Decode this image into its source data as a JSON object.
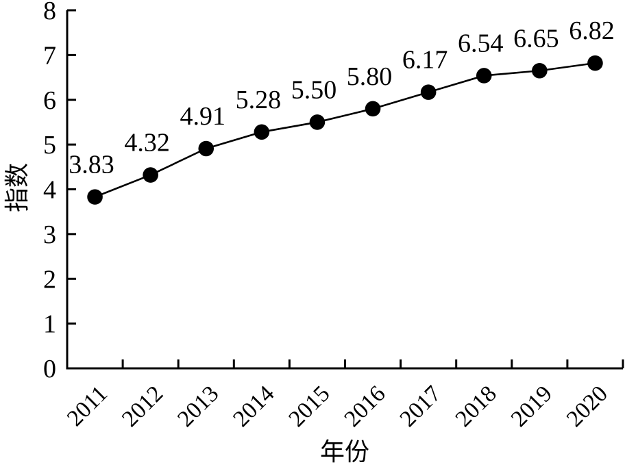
{
  "chart_data": {
    "type": "line",
    "title": "",
    "xlabel": "年份",
    "ylabel": "指数",
    "categories": [
      "2011",
      "2012",
      "2013",
      "2014",
      "2015",
      "2016",
      "2017",
      "2018",
      "2019",
      "2020"
    ],
    "series": [
      {
        "name": "指数",
        "values": [
          3.83,
          4.32,
          4.91,
          5.28,
          5.5,
          5.8,
          6.17,
          6.54,
          6.65,
          6.82
        ],
        "data_labels": [
          "3.83",
          "4.32",
          "4.91",
          "5.28",
          "5.50",
          "5.80",
          "6.17",
          "6.54",
          "6.65",
          "6.82"
        ]
      }
    ],
    "ylim": [
      0,
      8
    ],
    "y_ticks": [
      0,
      1,
      2,
      3,
      4,
      5,
      6,
      7,
      8
    ],
    "y_tick_labels": [
      "0",
      "1",
      "2",
      "3",
      "4",
      "5",
      "6",
      "7",
      "8"
    ],
    "grid": false,
    "legend": "none",
    "marker": "filled-circle",
    "line_color": "#000000",
    "axis_color": "#000000",
    "background_color": "#ffffff",
    "x_label_rotation_deg": -45
  }
}
